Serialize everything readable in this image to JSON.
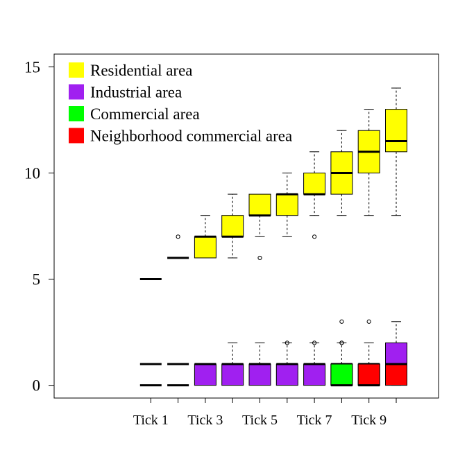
{
  "chart_data": {
    "type": "box",
    "title": "",
    "xlabel": "",
    "ylabel": "",
    "ylim": [
      -0.6,
      15.6
    ],
    "y_ticks": [
      0,
      5,
      10,
      15
    ],
    "x_tick_labels": [
      {
        "pos": 1,
        "label": "Tick 1"
      },
      {
        "pos": 3,
        "label": "Tick 3"
      },
      {
        "pos": 5,
        "label": "Tick 5"
      },
      {
        "pos": 7,
        "label": "Tick 7"
      },
      {
        "pos": 9,
        "label": "Tick 9"
      }
    ],
    "legend": {
      "position": "top-left",
      "entries": [
        {
          "label": "Residential area",
          "color": "#ffff00"
        },
        {
          "label": "Industrial area",
          "color": "#a020f0"
        },
        {
          "label": "Commercial area",
          "color": "#00ff00"
        },
        {
          "label": "Neighborhood commercial area",
          "color": "#ff0000"
        }
      ]
    },
    "series": [
      {
        "name": "Residential area",
        "color": "#ffff00",
        "boxes": [
          {
            "x": 1,
            "min": 5,
            "q1": 5,
            "median": 5,
            "q3": 5,
            "max": 5,
            "outliers": []
          },
          {
            "x": 2,
            "min": 6,
            "q1": 6,
            "median": 6,
            "q3": 6,
            "max": 6,
            "outliers": [
              7
            ]
          },
          {
            "x": 3,
            "min": 6,
            "q1": 6,
            "median": 7,
            "q3": 7,
            "max": 8,
            "outliers": []
          },
          {
            "x": 4,
            "min": 6,
            "q1": 7,
            "median": 7,
            "q3": 8,
            "max": 9,
            "outliers": []
          },
          {
            "x": 5,
            "min": 7,
            "q1": 8,
            "median": 8,
            "q3": 9,
            "max": 9,
            "outliers": [
              6
            ]
          },
          {
            "x": 6,
            "min": 7,
            "q1": 8,
            "median": 9,
            "q3": 9,
            "max": 10,
            "outliers": []
          },
          {
            "x": 7,
            "min": 8,
            "q1": 9,
            "median": 9,
            "q3": 10,
            "max": 11,
            "outliers": [
              7
            ]
          },
          {
            "x": 8,
            "min": 8,
            "q1": 9,
            "median": 10,
            "q3": 11,
            "max": 12,
            "outliers": []
          },
          {
            "x": 9,
            "min": 8,
            "q1": 10,
            "median": 11,
            "q3": 12,
            "max": 13,
            "outliers": []
          },
          {
            "x": 10,
            "min": 8,
            "q1": 11,
            "median": 11.5,
            "q3": 13,
            "max": 14,
            "outliers": []
          }
        ]
      },
      {
        "name": "Industrial area",
        "color": "#a020f0",
        "boxes": [
          {
            "x": 1,
            "min": 1,
            "q1": 1,
            "median": 1,
            "q3": 1,
            "max": 1,
            "outliers": []
          },
          {
            "x": 2,
            "min": 1,
            "q1": 1,
            "median": 1,
            "q3": 1,
            "max": 1,
            "outliers": []
          },
          {
            "x": 3,
            "min": 0,
            "q1": 0,
            "median": 1,
            "q3": 1,
            "max": 1,
            "outliers": []
          },
          {
            "x": 4,
            "min": 0,
            "q1": 0,
            "median": 1,
            "q3": 1,
            "max": 2,
            "outliers": []
          },
          {
            "x": 5,
            "min": 0,
            "q1": 0,
            "median": 1,
            "q3": 1,
            "max": 2,
            "outliers": []
          },
          {
            "x": 6,
            "min": 0,
            "q1": 0,
            "median": 1,
            "q3": 1,
            "max": 2,
            "outliers": [
              2
            ]
          },
          {
            "x": 7,
            "min": 0,
            "q1": 0,
            "median": 1,
            "q3": 1,
            "max": 2,
            "outliers": [
              2
            ]
          },
          {
            "x": 8,
            "min": 0,
            "q1": 0,
            "median": 1,
            "q3": 1,
            "max": 2,
            "outliers": [
              2
            ]
          },
          {
            "x": 9,
            "min": 0,
            "q1": 0,
            "median": 1,
            "q3": 1,
            "max": 2,
            "outliers": [
              3
            ]
          },
          {
            "x": 10,
            "min": 0,
            "q1": 1,
            "median": 1,
            "q3": 2,
            "max": 3,
            "outliers": []
          }
        ]
      },
      {
        "name": "Commercial area",
        "color": "#00ff00",
        "boxes": [
          {
            "x": 8,
            "min": 0,
            "q1": 0,
            "median": 0,
            "q3": 1,
            "max": 1,
            "outliers": [
              2,
              3
            ]
          }
        ]
      },
      {
        "name": "Neighborhood commercial area",
        "color": "#ff0000",
        "boxes": [
          {
            "x": 1,
            "min": 0,
            "q1": 0,
            "median": 0,
            "q3": 0,
            "max": 0,
            "outliers": []
          },
          {
            "x": 2,
            "min": 0,
            "q1": 0,
            "median": 0,
            "q3": 0,
            "max": 0,
            "outliers": []
          },
          {
            "x": 9,
            "min": 0,
            "q1": 0,
            "median": 0,
            "q3": 1,
            "max": 1,
            "outliers": []
          },
          {
            "x": 10,
            "min": 0,
            "q1": 0,
            "median": 1,
            "q3": 1,
            "max": 1,
            "outliers": []
          }
        ]
      }
    ]
  }
}
